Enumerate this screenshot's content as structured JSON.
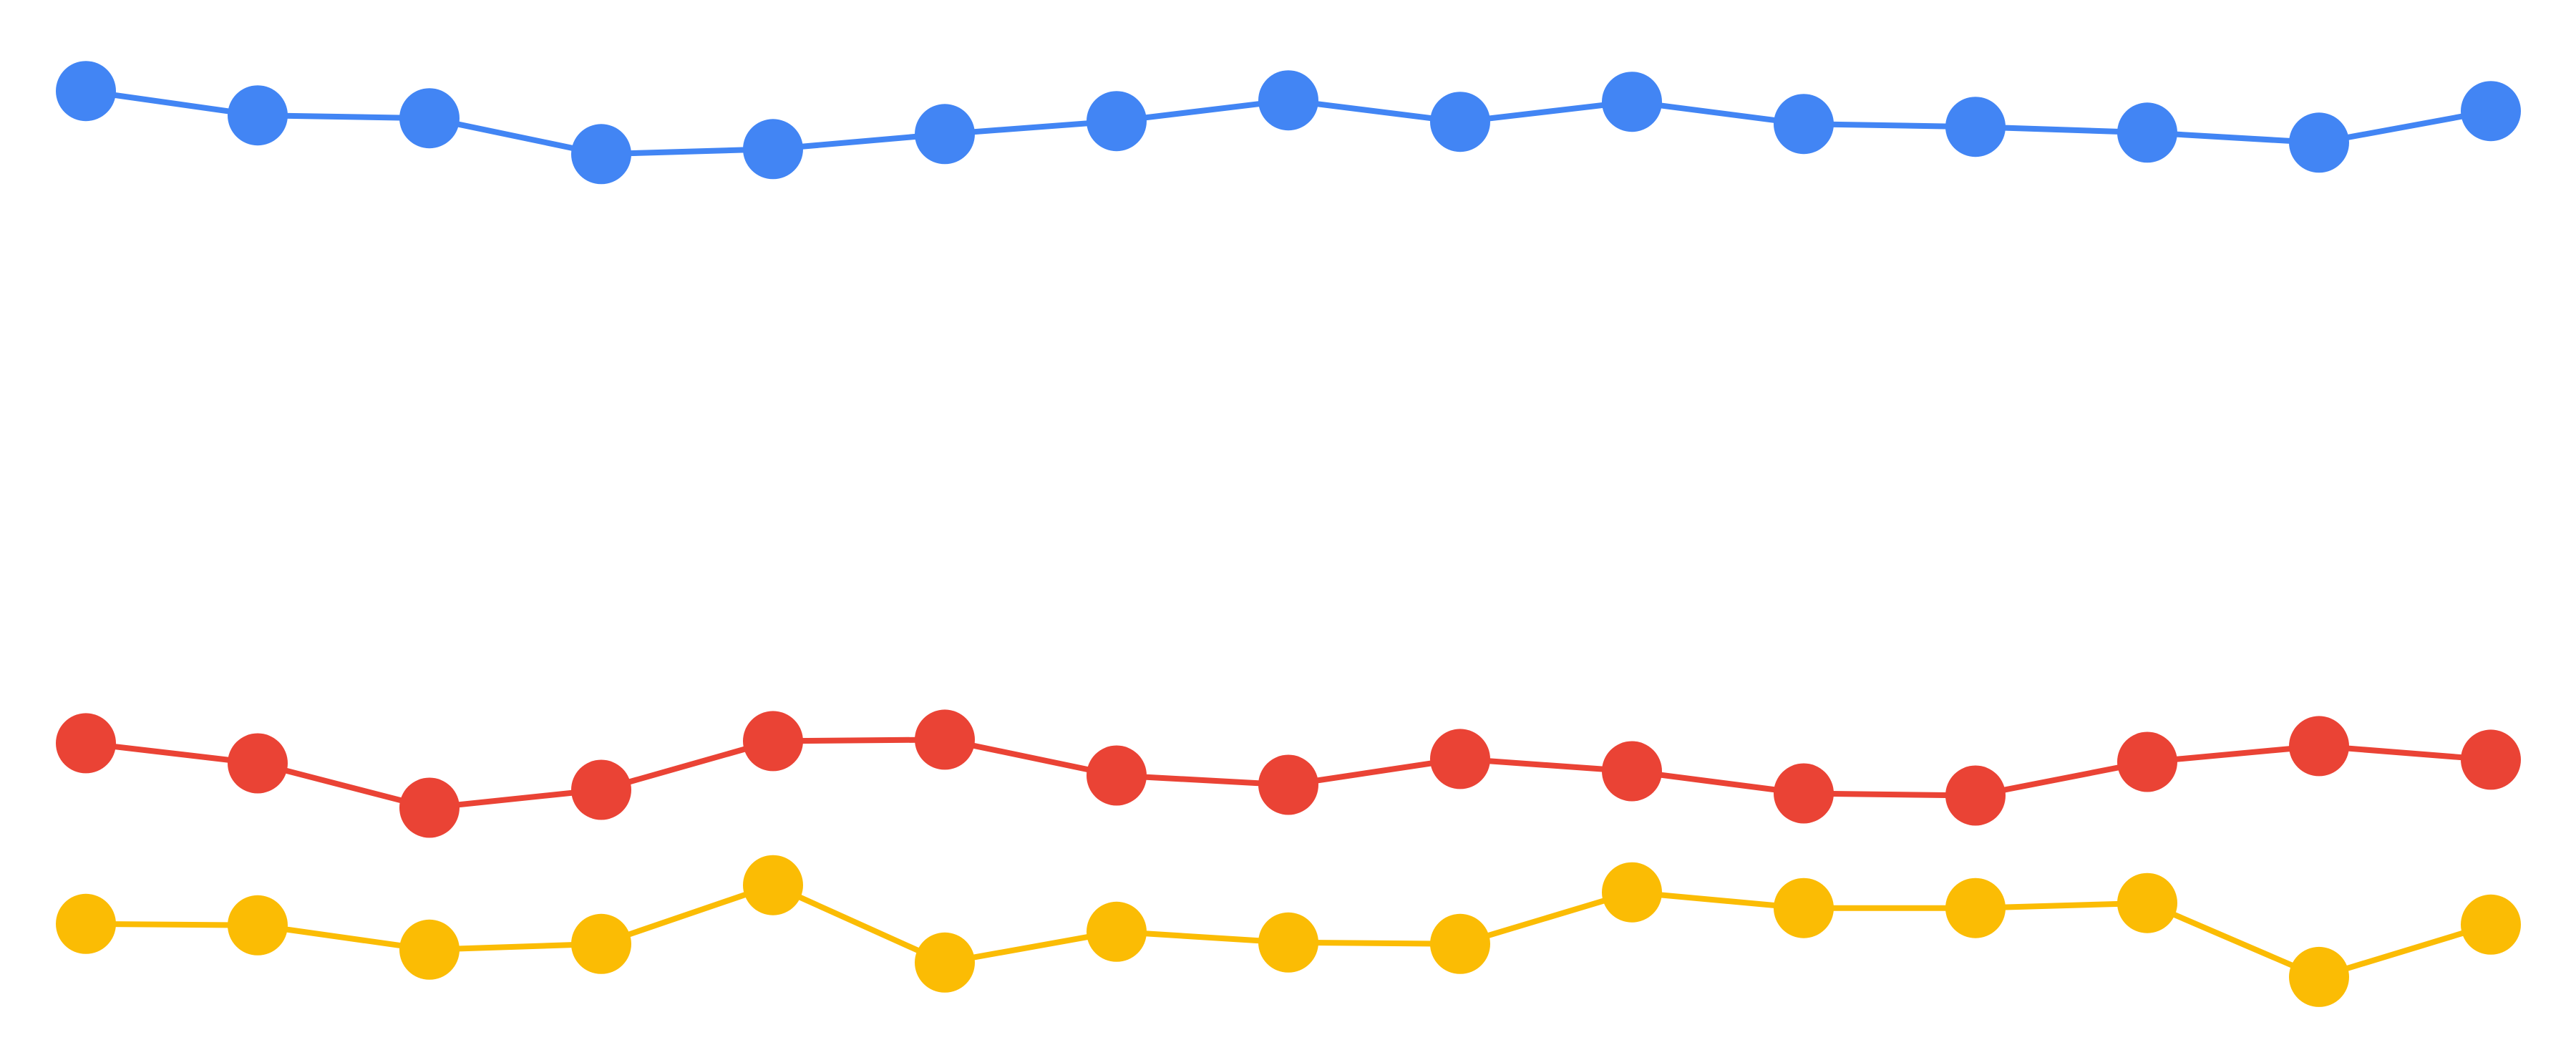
{
  "chart_data": {
    "type": "line",
    "title": "",
    "xlabel": "",
    "ylabel": "",
    "axes_visible": false,
    "grid": false,
    "legend": "none",
    "x": [
      1,
      2,
      3,
      4,
      5,
      6,
      7,
      8,
      9,
      10,
      11,
      12,
      13,
      14,
      15
    ],
    "ylim": [
      0,
      14.65
    ],
    "series": [
      {
        "color": "#4285F4",
        "values": [
          13.38,
          13.04,
          13.0,
          12.5,
          12.57,
          12.78,
          12.96,
          13.25,
          12.95,
          13.23,
          12.92,
          12.88,
          12.8,
          12.66,
          13.1
        ]
      },
      {
        "color": "#EA4335",
        "values": [
          4.28,
          4.0,
          3.38,
          3.63,
          4.31,
          4.33,
          3.83,
          3.7,
          4.06,
          3.89,
          3.58,
          3.55,
          4.02,
          4.24,
          4.05
        ]
      },
      {
        "color": "#FBBC04",
        "values": [
          1.76,
          1.74,
          1.4,
          1.48,
          2.3,
          1.22,
          1.65,
          1.5,
          1.48,
          2.2,
          1.98,
          1.98,
          2.05,
          1.02,
          1.75
        ]
      }
    ]
  }
}
